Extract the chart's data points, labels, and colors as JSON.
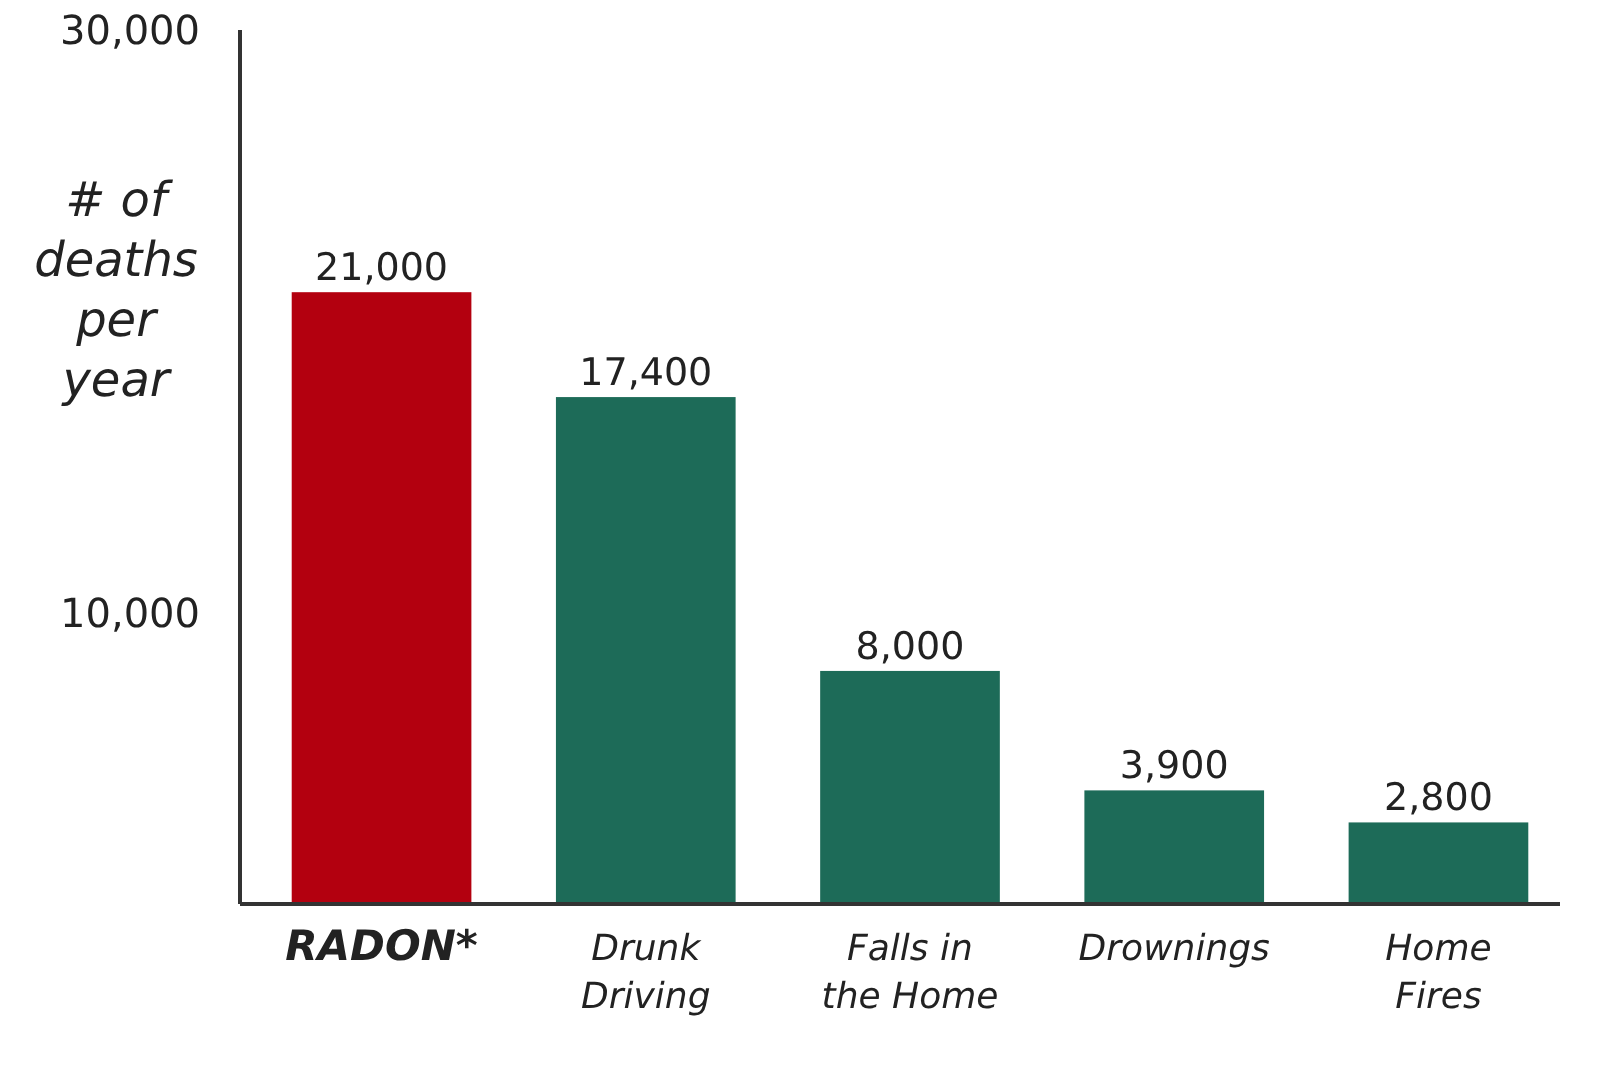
{
  "chart_data": {
    "type": "bar",
    "ylabel": "# of deaths per year",
    "categories": [
      "RADON*",
      "Drunk Driving",
      "Falls in the Home",
      "Drownings",
      "Home Fires"
    ],
    "values": [
      21000,
      17400,
      8000,
      3900,
      2800
    ],
    "value_labels": [
      "21,000",
      "17,400",
      "8,000",
      "3,900",
      "2,800"
    ],
    "colors": [
      "#b3000f",
      "#1d6b58",
      "#1d6b58",
      "#1d6b58",
      "#1d6b58"
    ],
    "ylim": [
      0,
      30000
    ],
    "yticks": [
      {
        "value": 10000,
        "label": "10,000"
      },
      {
        "value": 30000,
        "label": "30,000"
      }
    ],
    "grid": false
  }
}
